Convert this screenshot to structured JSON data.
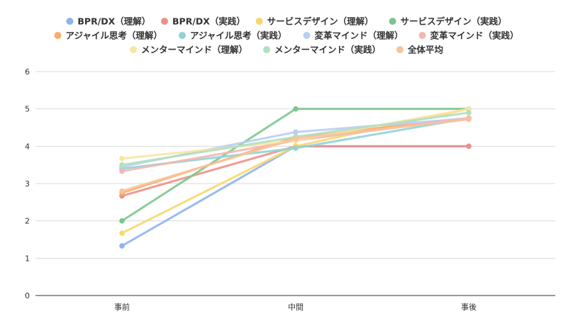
{
  "chart_data": {
    "type": "line",
    "title": "",
    "xlabel": "",
    "ylabel": "",
    "categories": [
      "事前",
      "中間",
      "事後"
    ],
    "ylim": [
      0,
      6
    ],
    "yticks": [
      0,
      1,
      2,
      3,
      4,
      5,
      6
    ],
    "grid": true,
    "legend_position": "top",
    "series": [
      {
        "name": "BPR/DX（理解）",
        "color": "#8fb3ef",
        "values": [
          1.33,
          4.0,
          4.0
        ]
      },
      {
        "name": "BPR/DX（実践）",
        "color": "#ef8f86",
        "values": [
          2.67,
          4.0,
          4.0
        ]
      },
      {
        "name": "サービスデザイン（理解）",
        "color": "#f7d86e",
        "values": [
          1.67,
          4.0,
          5.0
        ]
      },
      {
        "name": "サービスデザイン（実践）",
        "color": "#7cc68e",
        "values": [
          2.0,
          5.0,
          5.0
        ]
      },
      {
        "name": "アジャイル思考（理解）",
        "color": "#f6ad6b",
        "values": [
          2.75,
          4.25,
          4.75
        ]
      },
      {
        "name": "アジャイル思考（実践）",
        "color": "#8fd3d6",
        "values": [
          3.4,
          3.95,
          4.75
        ]
      },
      {
        "name": "変革マインド（理解）",
        "color": "#b9cdf3",
        "values": [
          3.45,
          4.38,
          4.75
        ]
      },
      {
        "name": "変革マインド（実践）",
        "color": "#f1b7b0",
        "values": [
          3.33,
          4.15,
          4.75
        ]
      },
      {
        "name": "メンターマインド（理解）",
        "color": "#f9e4a3",
        "values": [
          3.67,
          4.15,
          5.0
        ]
      },
      {
        "name": "メンターマインド（実践）",
        "color": "#b3dfbe",
        "values": [
          3.5,
          4.25,
          4.9
        ]
      },
      {
        "name": "全体平均",
        "color": "#f8c39b",
        "values": [
          2.8,
          4.2,
          4.72
        ]
      }
    ]
  }
}
